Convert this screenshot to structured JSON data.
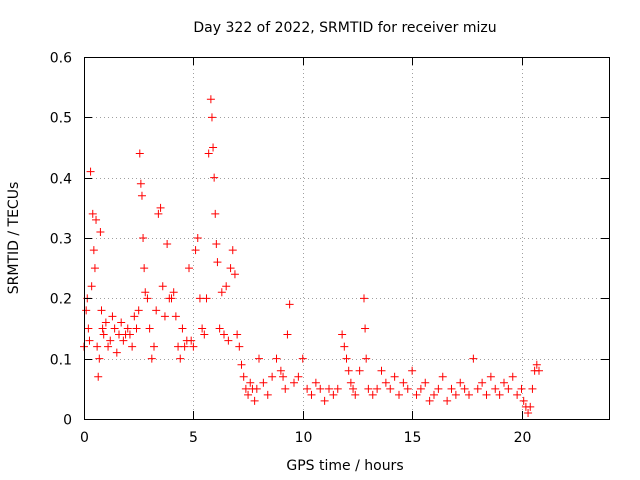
{
  "chart_data": {
    "type": "scatter",
    "title": "Day 322 of 2022, SRMTID for receiver mizu",
    "xlabel": "GPS time / hours",
    "ylabel": "SRMTID / TECUs",
    "xlim": [
      0,
      24
    ],
    "ylim": [
      0,
      0.6
    ],
    "x_ticks": [
      0,
      5,
      10,
      15,
      20
    ],
    "y_ticks": [
      0,
      0.1,
      0.2,
      0.3,
      0.4,
      0.5,
      0.6
    ],
    "x_tick_labels": [
      "0",
      "5",
      "10",
      "15",
      "20"
    ],
    "y_tick_labels": [
      "0",
      "0.1",
      "0.2",
      "0.3",
      "0.4",
      "0.5",
      "0.6"
    ],
    "grid": true,
    "marker": "+",
    "series": [
      {
        "name": "SRMTID",
        "color": "#ff0000",
        "x": [
          0.0,
          0.1,
          0.15,
          0.2,
          0.25,
          0.3,
          0.35,
          0.4,
          0.45,
          0.5,
          0.55,
          0.6,
          0.65,
          0.7,
          0.75,
          0.8,
          0.85,
          0.9,
          1.0,
          1.1,
          1.2,
          1.3,
          1.4,
          1.5,
          1.6,
          1.7,
          1.8,
          1.9,
          2.0,
          2.1,
          2.2,
          2.3,
          2.4,
          2.5,
          2.55,
          2.6,
          2.65,
          2.7,
          2.75,
          2.8,
          2.9,
          3.0,
          3.1,
          3.2,
          3.3,
          3.4,
          3.5,
          3.6,
          3.7,
          3.8,
          3.9,
          4.0,
          4.1,
          4.2,
          4.3,
          4.4,
          4.5,
          4.6,
          4.7,
          4.8,
          4.9,
          5.0,
          5.1,
          5.2,
          5.3,
          5.4,
          5.5,
          5.6,
          5.7,
          5.8,
          5.85,
          5.9,
          5.95,
          6.0,
          6.05,
          6.1,
          6.2,
          6.3,
          6.4,
          6.5,
          6.6,
          6.7,
          6.8,
          6.9,
          7.0,
          7.1,
          7.2,
          7.3,
          7.4,
          7.5,
          7.6,
          7.7,
          7.8,
          7.9,
          8.0,
          8.2,
          8.4,
          8.6,
          8.8,
          9.0,
          9.1,
          9.2,
          9.3,
          9.4,
          9.6,
          9.8,
          10.0,
          10.2,
          10.4,
          10.6,
          10.8,
          11.0,
          11.2,
          11.4,
          11.6,
          11.8,
          11.9,
          12.0,
          12.1,
          12.2,
          12.3,
          12.4,
          12.6,
          12.8,
          12.85,
          12.9,
          13.0,
          13.2,
          13.4,
          13.6,
          13.8,
          14.0,
          14.2,
          14.4,
          14.6,
          14.8,
          15.0,
          15.2,
          15.4,
          15.6,
          15.8,
          16.0,
          16.2,
          16.4,
          16.6,
          16.8,
          17.0,
          17.2,
          17.4,
          17.6,
          17.8,
          18.0,
          18.2,
          18.4,
          18.6,
          18.8,
          19.0,
          19.2,
          19.4,
          19.6,
          19.8,
          20.0,
          20.1,
          20.2,
          20.3,
          20.4,
          20.5,
          20.6,
          20.7,
          20.8
        ],
        "y": [
          0.12,
          0.18,
          0.2,
          0.15,
          0.13,
          0.41,
          0.22,
          0.34,
          0.28,
          0.25,
          0.33,
          0.12,
          0.07,
          0.1,
          0.31,
          0.18,
          0.15,
          0.14,
          0.16,
          0.12,
          0.13,
          0.17,
          0.15,
          0.11,
          0.14,
          0.16,
          0.13,
          0.14,
          0.15,
          0.14,
          0.12,
          0.17,
          0.15,
          0.18,
          0.44,
          0.39,
          0.37,
          0.3,
          0.25,
          0.21,
          0.2,
          0.15,
          0.1,
          0.12,
          0.18,
          0.34,
          0.35,
          0.22,
          0.17,
          0.29,
          0.2,
          0.2,
          0.21,
          0.17,
          0.12,
          0.1,
          0.15,
          0.12,
          0.13,
          0.25,
          0.13,
          0.12,
          0.28,
          0.3,
          0.2,
          0.15,
          0.14,
          0.2,
          0.44,
          0.53,
          0.5,
          0.45,
          0.4,
          0.34,
          0.29,
          0.26,
          0.15,
          0.21,
          0.14,
          0.22,
          0.13,
          0.25,
          0.28,
          0.24,
          0.14,
          0.12,
          0.09,
          0.07,
          0.05,
          0.04,
          0.06,
          0.05,
          0.03,
          0.05,
          0.1,
          0.06,
          0.04,
          0.07,
          0.1,
          0.08,
          0.07,
          0.05,
          0.14,
          0.19,
          0.06,
          0.07,
          0.1,
          0.05,
          0.04,
          0.06,
          0.05,
          0.03,
          0.05,
          0.04,
          0.05,
          0.14,
          0.12,
          0.1,
          0.08,
          0.06,
          0.05,
          0.04,
          0.08,
          0.2,
          0.15,
          0.1,
          0.05,
          0.04,
          0.05,
          0.08,
          0.06,
          0.05,
          0.07,
          0.04,
          0.06,
          0.05,
          0.08,
          0.04,
          0.05,
          0.06,
          0.03,
          0.04,
          0.05,
          0.07,
          0.03,
          0.05,
          0.04,
          0.06,
          0.05,
          0.04,
          0.1,
          0.05,
          0.06,
          0.04,
          0.07,
          0.05,
          0.04,
          0.06,
          0.05,
          0.07,
          0.04,
          0.05,
          0.03,
          0.02,
          0.01,
          0.02,
          0.05,
          0.08,
          0.09,
          0.08
        ]
      }
    ]
  }
}
